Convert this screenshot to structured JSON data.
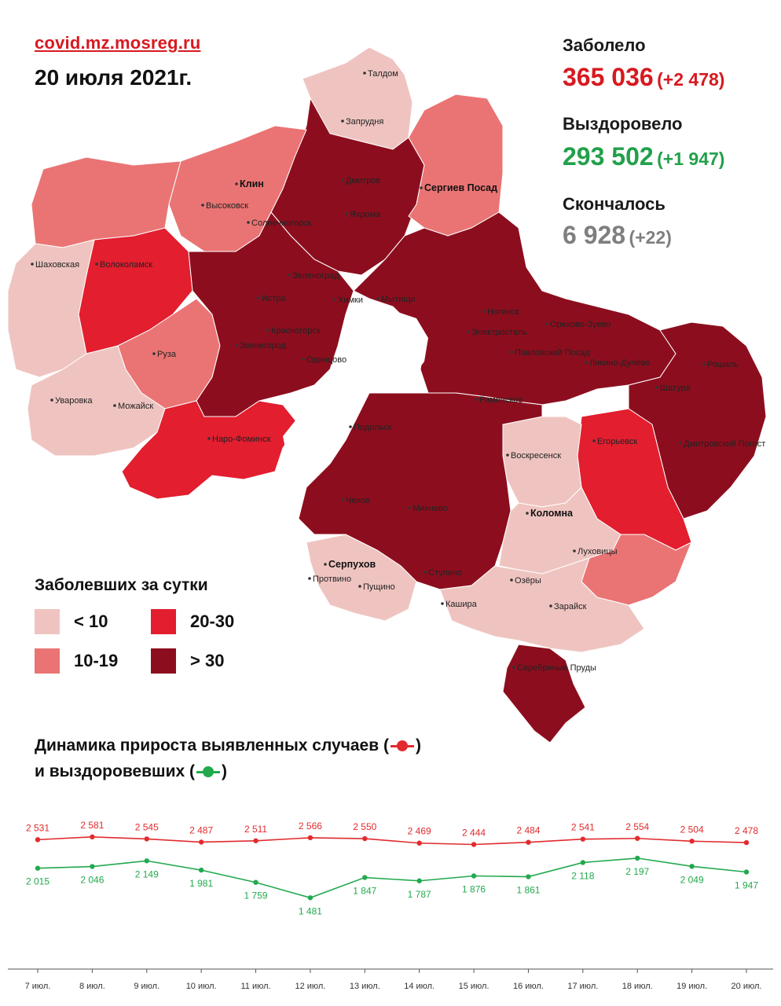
{
  "header": {
    "source": "covid.mz.mosreg.ru",
    "date": "20 июля 2021г."
  },
  "stats": {
    "infected": {
      "label": "Заболело",
      "value": "365 036",
      "delta": "(+2 478)",
      "color": "#d7191f"
    },
    "recovered": {
      "label": "Выздоровело",
      "value": "293 502",
      "delta": "(+1 947)",
      "color": "#22a04b"
    },
    "deaths": {
      "label": "Скончалось",
      "value": "6 928",
      "delta": "(+22)",
      "color": "#7f7f7f"
    }
  },
  "legend": {
    "title": "Заболевших за сутки",
    "items": [
      {
        "label": "< 10",
        "color": "#efc4c0"
      },
      {
        "label": "20-30",
        "color": "#e21e2f"
      },
      {
        "label": "10-19",
        "color": "#ea7474"
      },
      {
        "label": "> 30",
        "color": "#8c0e1e"
      }
    ]
  },
  "map_labels": [
    "Талдом",
    "Запрудня",
    "Дмитров",
    "Яхрома",
    "Клин",
    "Высоковск",
    "Солнечногорск",
    "Сергиев Посад",
    "Шаховская",
    "Волоколамск",
    "Зеленоград",
    "Истра",
    "Химки",
    "Мытищи",
    "Ногинск",
    "Электросталь",
    "Орехово-Зуево",
    "Красногорск",
    "Звенигород",
    "Одинцово",
    "Павловский Посад",
    "Ликино-Дулёво",
    "Рошаль",
    "Руза",
    "Шатура",
    "Уваровка",
    "Можайск",
    "Раменское",
    "Наро-Фоминск",
    "Подольск",
    "Егорьевск",
    "Воскресенск",
    "Дмитровский Погост",
    "Чехов",
    "Михнево",
    "Коломна",
    "Луховицы",
    "Серпухов",
    "Протвино",
    "Пущино",
    "Ступино",
    "Озёры",
    "Кашира",
    "Зарайск",
    "Серебряные Пруды"
  ],
  "dynamics_title": {
    "line1": "Динамика прироста выявленных случаев (",
    "line1_end": ")",
    "line2": "и выздоровевших (",
    "line2_end": ")"
  },
  "chart_data": {
    "type": "line",
    "categories": [
      "7 июл.",
      "8 июл.",
      "9 июл.",
      "10 июл.",
      "11 июл.",
      "12 июл.",
      "13 июл.",
      "14 июл.",
      "15 июл.",
      "16 июл.",
      "17 июл.",
      "18 июл.",
      "19 июл.",
      "20 июл."
    ],
    "series": [
      {
        "color": "#e12b2e",
        "values": [
          2531,
          2581,
          2545,
          2487,
          2511,
          2566,
          2550,
          2469,
          2444,
          2484,
          2541,
          2554,
          2504,
          2478
        ],
        "labels": [
          "2 531",
          "2 581",
          "2 545",
          "2 487",
          "2 511",
          "2 566",
          "2 550",
          "2 469",
          "2 444",
          "2 484",
          "2 541",
          "2 554",
          "2 504",
          "2 478"
        ]
      },
      {
        "color": "#22a94e",
        "values": [
          2015,
          2046,
          2149,
          1981,
          1759,
          1481,
          1847,
          1787,
          1876,
          1861,
          2118,
          2197,
          2049,
          1947
        ],
        "labels": [
          "2 015",
          "2 046",
          "2 149",
          "1 981",
          "1 759",
          "1 481",
          "1 847",
          "1 787",
          "1 876",
          "1 861",
          "2 118",
          "2 197",
          "2 049",
          "1 947"
        ]
      }
    ],
    "legend": "top-left",
    "grid": false
  }
}
